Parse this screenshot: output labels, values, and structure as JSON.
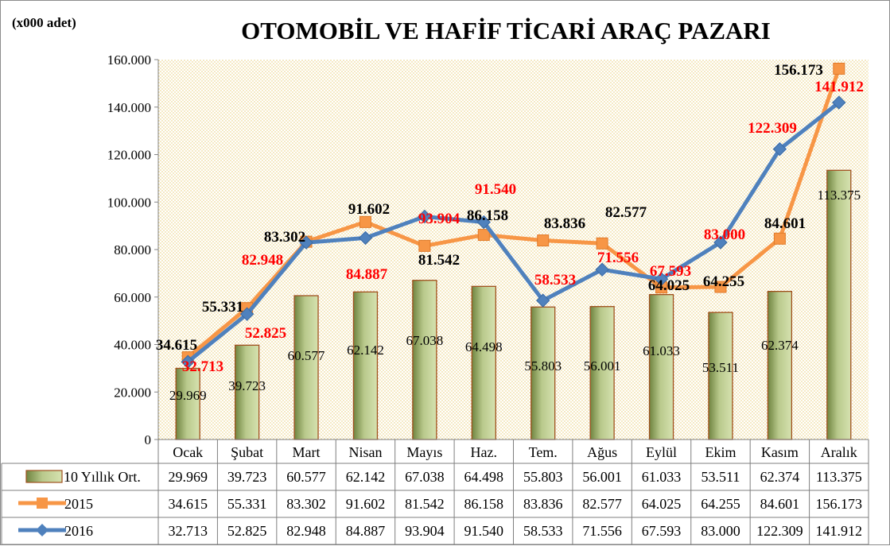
{
  "chart_data": {
    "type": "bar",
    "title": "OTOMOBİL VE HAFİF TİCARİ ARAÇ PAZARI",
    "unit_label": "(x000 adet)",
    "categories": [
      "Ocak",
      "Şubat",
      "Mart",
      "Nisan",
      "Mayıs",
      "Haz.",
      "Tem.",
      "Ağus",
      "Eylül",
      "Ekim",
      "Kasım",
      "Aralık"
    ],
    "ylim": [
      0,
      160000
    ],
    "yticks": [
      "0",
      "20.000",
      "40.000",
      "60.000",
      "80.000",
      "100.000",
      "120.000",
      "140.000",
      "160.000"
    ],
    "grid": "dotted",
    "legend": "data-table",
    "series": [
      {
        "name": "10 Yıllık Ort.",
        "type": "bar",
        "color": "#9aad6a",
        "values": [
          29969,
          39723,
          60577,
          62142,
          67038,
          64498,
          55803,
          56001,
          61033,
          53511,
          62374,
          113375
        ],
        "labels": [
          "29.969",
          "39.723",
          "60.577",
          "62.142",
          "67.038",
          "64.498",
          "55.803",
          "56.001",
          "61.033",
          "53.511",
          "62.374",
          "113.375"
        ]
      },
      {
        "name": "2015",
        "type": "line",
        "color": "#f79646",
        "label_color": "#000000",
        "values": [
          34615,
          55331,
          83302,
          91602,
          81542,
          86158,
          83836,
          82577,
          64025,
          64255,
          84601,
          156173
        ],
        "labels": [
          "34.615",
          "55.331",
          "83.302",
          "91.602",
          "81.542",
          "86.158",
          "83.836",
          "82.577",
          "64.025",
          "64.255",
          "84.601",
          "156.173"
        ]
      },
      {
        "name": "2016",
        "type": "line",
        "color": "#4f81bd",
        "label_color": "#ff0000",
        "values": [
          32713,
          52825,
          82948,
          84887,
          93904,
          91540,
          58533,
          71556,
          67593,
          83000,
          122309,
          141912
        ],
        "labels": [
          "32.713",
          "52.825",
          "82.948",
          "84.887",
          "93.904",
          "91.540",
          "58.533",
          "71.556",
          "67.593",
          "83.000",
          "122.309",
          "141.912"
        ]
      }
    ]
  }
}
